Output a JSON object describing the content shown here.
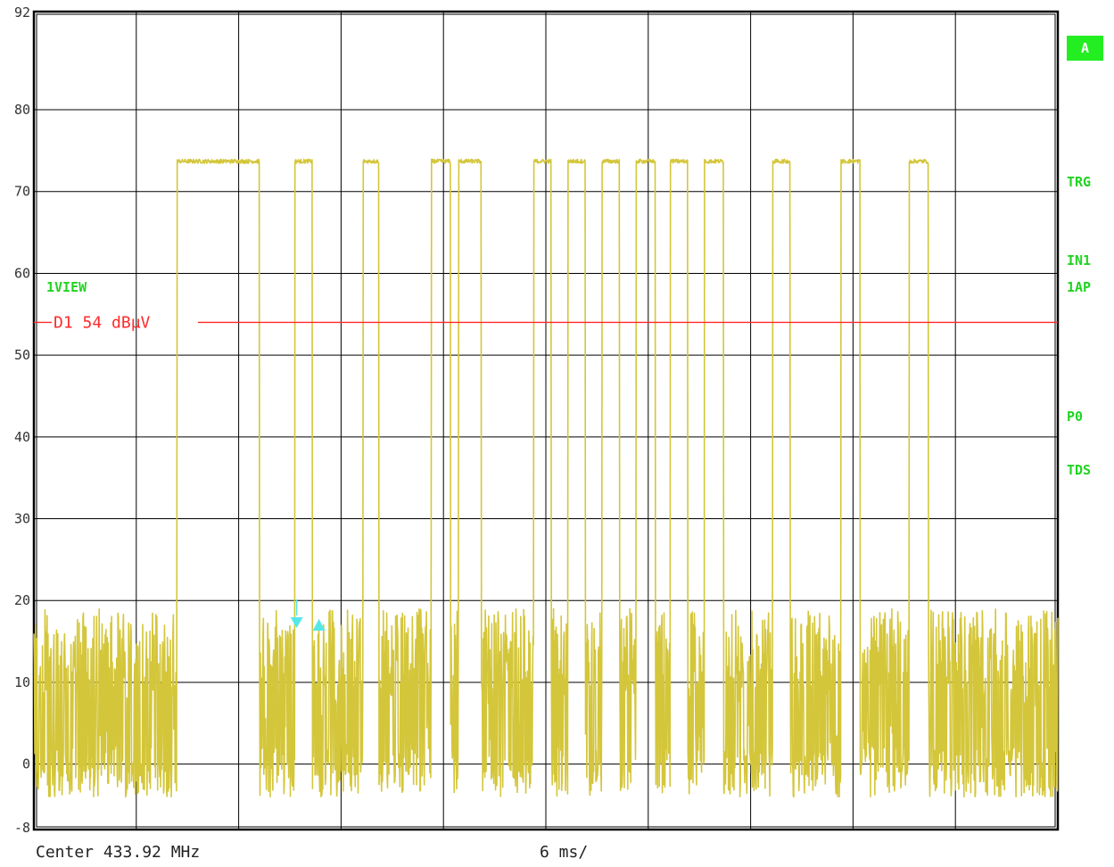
{
  "chart_data": {
    "type": "line",
    "title": "",
    "xlabel": "",
    "ylabel": "",
    "ylim": [
      -8,
      92
    ],
    "yticks": [
      92,
      80,
      70,
      60,
      50,
      40,
      30,
      20,
      10,
      0,
      -8
    ],
    "xlim_ms": [
      0,
      60
    ],
    "x_divisions": 10,
    "grid": true,
    "series": [
      {
        "color": "#d4c63a",
        "high_level": 73.7,
        "noise_range": [
          -4,
          19
        ],
        "high_segments_ms": [
          [
            8.4,
            13.2
          ],
          [
            15.3,
            16.3
          ],
          [
            19.3,
            20.2
          ],
          [
            23.3,
            24.4
          ],
          [
            24.9,
            26.2
          ],
          [
            29.3,
            30.3
          ],
          [
            31.3,
            32.3
          ],
          [
            33.3,
            34.3
          ],
          [
            35.3,
            36.4
          ],
          [
            37.3,
            38.3
          ],
          [
            39.3,
            40.4
          ],
          [
            43.3,
            44.3
          ],
          [
            47.3,
            48.4
          ],
          [
            51.3,
            52.4
          ]
        ]
      }
    ],
    "annotations": {
      "display_line": {
        "label": "D1 54 dBµV",
        "value": 54,
        "color": "#ff2a2a"
      },
      "trigger_marker_ms": 15.4,
      "trigger_marker_color": "#55e8e8"
    }
  },
  "footer": {
    "center": "Center 433.92 MHz",
    "sweep": "6 ms/"
  },
  "side_labels": {
    "badge": "A",
    "view": "1VIEW",
    "trg": "TRG",
    "in1": "IN1",
    "ap": "1AP",
    "p0": "P0",
    "tds": "TDS"
  },
  "colors": {
    "trace": "#d4c63a",
    "grid": "#000000",
    "display_line": "#ff2a2a",
    "status_green": "#22d322"
  }
}
